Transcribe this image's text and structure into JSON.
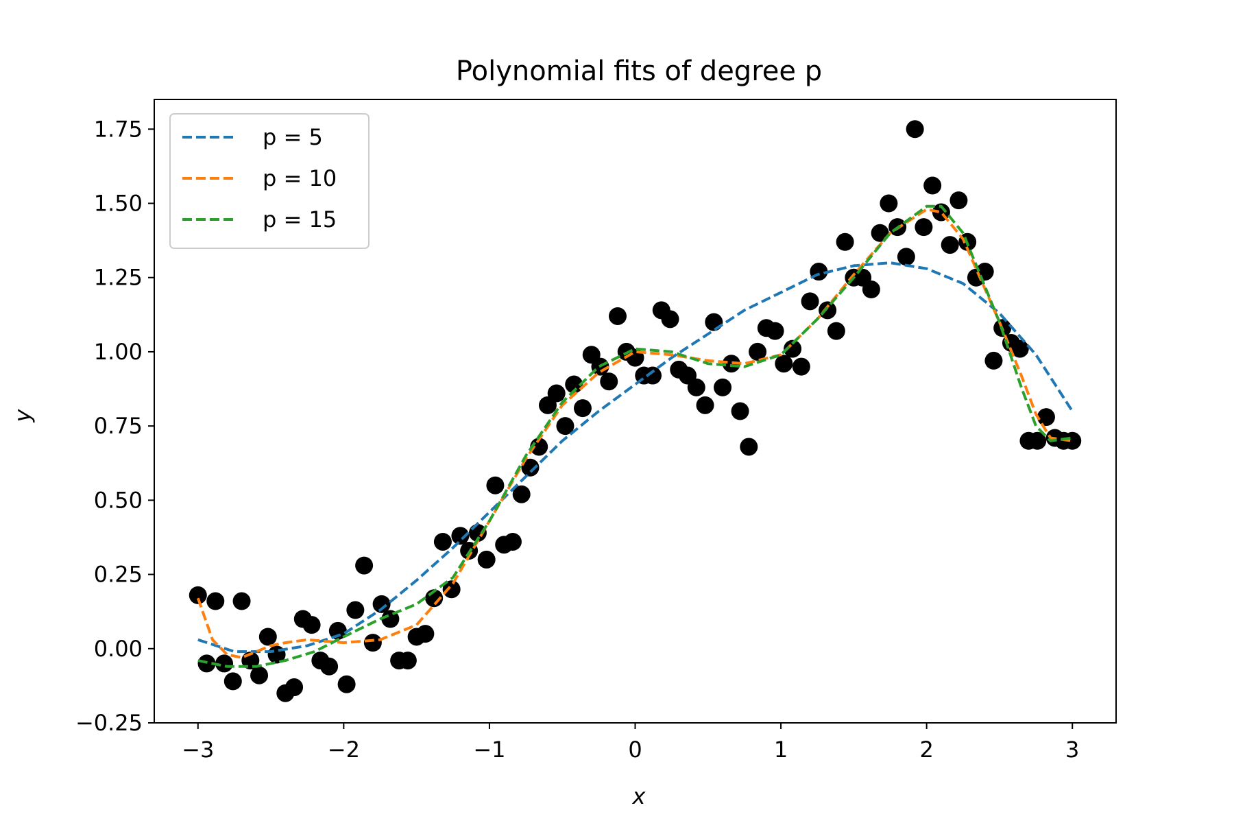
{
  "chart_data": {
    "type": "scatter",
    "title": "Polynomial fits of degree p",
    "xlabel": "x",
    "ylabel": "y",
    "xlim": [
      -3.3,
      3.3
    ],
    "ylim": [
      -0.25,
      1.85
    ],
    "xticks": [
      -3,
      -2,
      -1,
      0,
      1,
      2,
      3
    ],
    "xtick_labels": [
      "−3",
      "−2",
      "−1",
      "0",
      "1",
      "2",
      "3"
    ],
    "yticks": [
      -0.25,
      0,
      0.25,
      0.5,
      0.75,
      1.0,
      1.25,
      1.5,
      1.75
    ],
    "ytick_labels": [
      "−0.25",
      "0.00",
      "0.25",
      "0.50",
      "0.75",
      "1.00",
      "1.25",
      "1.50",
      "1.75"
    ],
    "grid": false,
    "legend_position": "top-left",
    "points": {
      "color": "#000000",
      "x": [
        -3.0,
        -2.94,
        -2.88,
        -2.82,
        -2.76,
        -2.7,
        -2.64,
        -2.58,
        -2.52,
        -2.46,
        -2.4,
        -2.34,
        -2.28,
        -2.22,
        -2.16,
        -2.1,
        -2.04,
        -1.98,
        -1.92,
        -1.86,
        -1.8,
        -1.74,
        -1.68,
        -1.62,
        -1.56,
        -1.5,
        -1.44,
        -1.38,
        -1.32,
        -1.26,
        -1.2,
        -1.14,
        -1.08,
        -1.02,
        -0.96,
        -0.9,
        -0.84,
        -0.78,
        -0.72,
        -0.66,
        -0.6,
        -0.54,
        -0.48,
        -0.42,
        -0.36,
        -0.3,
        -0.24,
        -0.18,
        -0.12,
        -0.06,
        0.0,
        0.06,
        0.12,
        0.18,
        0.24,
        0.3,
        0.36,
        0.42,
        0.48,
        0.54,
        0.6,
        0.66,
        0.72,
        0.78,
        0.84,
        0.9,
        0.96,
        1.02,
        1.08,
        1.14,
        1.2,
        1.26,
        1.32,
        1.38,
        1.44,
        1.5,
        1.56,
        1.62,
        1.68,
        1.74,
        1.8,
        1.86,
        1.92,
        1.98,
        2.04,
        2.1,
        2.16,
        2.22,
        2.28,
        2.34,
        2.4,
        2.46,
        2.52,
        2.58,
        2.64,
        2.7,
        2.76,
        2.82,
        2.88,
        2.94,
        3.0
      ],
      "y": [
        0.18,
        -0.05,
        0.16,
        -0.05,
        -0.11,
        0.16,
        -0.04,
        -0.09,
        0.04,
        -0.02,
        -0.15,
        -0.13,
        0.1,
        0.08,
        -0.04,
        -0.06,
        0.06,
        -0.12,
        0.13,
        0.28,
        0.02,
        0.15,
        0.1,
        -0.04,
        -0.04,
        0.04,
        0.05,
        0.17,
        0.36,
        0.2,
        0.38,
        0.33,
        0.39,
        0.3,
        0.55,
        0.35,
        0.36,
        0.52,
        0.61,
        0.68,
        0.82,
        0.86,
        0.75,
        0.89,
        0.81,
        0.99,
        0.95,
        0.9,
        1.12,
        1.0,
        0.98,
        0.92,
        0.92,
        1.14,
        1.11,
        0.94,
        0.92,
        0.88,
        0.82,
        1.1,
        0.88,
        0.96,
        0.8,
        0.68,
        1.0,
        1.08,
        1.07,
        0.96,
        1.01,
        0.95,
        1.17,
        1.27,
        1.14,
        1.07,
        1.37,
        1.25,
        1.25,
        1.21,
        1.4,
        1.5,
        1.42,
        1.32,
        1.75,
        1.42,
        1.56,
        1.47,
        1.36,
        1.51,
        1.37,
        1.25,
        1.27,
        0.97,
        1.08,
        1.03,
        1.01,
        0.7,
        0.7,
        0.78,
        0.71,
        0.7,
        0.7
      ]
    },
    "series": [
      {
        "name": "p = 5",
        "color": "#1f77b4",
        "x": [
          -3.0,
          -2.75,
          -2.5,
          -2.25,
          -2.0,
          -1.75,
          -1.5,
          -1.25,
          -1.0,
          -0.75,
          -0.5,
          -0.25,
          0.0,
          0.25,
          0.5,
          0.75,
          1.0,
          1.25,
          1.5,
          1.75,
          2.0,
          2.25,
          2.5,
          2.75,
          3.0
        ],
        "y": [
          0.03,
          -0.01,
          -0.01,
          0.01,
          0.05,
          0.13,
          0.23,
          0.34,
          0.46,
          0.58,
          0.7,
          0.8,
          0.89,
          0.98,
          1.06,
          1.14,
          1.2,
          1.26,
          1.29,
          1.3,
          1.28,
          1.23,
          1.13,
          0.99,
          0.8
        ]
      },
      {
        "name": "p = 10",
        "color": "#ff7f0e",
        "x": [
          -3.0,
          -2.9,
          -2.8,
          -2.7,
          -2.6,
          -2.5,
          -2.4,
          -2.25,
          -2.0,
          -1.75,
          -1.5,
          -1.25,
          -1.0,
          -0.75,
          -0.5,
          -0.25,
          0.0,
          0.25,
          0.5,
          0.75,
          1.0,
          1.25,
          1.5,
          1.75,
          2.0,
          2.1,
          2.25,
          2.5,
          2.65,
          2.75,
          2.85,
          3.0
        ],
        "y": [
          0.17,
          0.03,
          -0.02,
          -0.03,
          -0.01,
          0.01,
          0.02,
          0.03,
          0.02,
          0.03,
          0.08,
          0.22,
          0.43,
          0.64,
          0.82,
          0.93,
          1.0,
          0.99,
          0.97,
          0.96,
          0.99,
          1.11,
          1.26,
          1.4,
          1.48,
          1.47,
          1.38,
          1.1,
          0.92,
          0.79,
          0.71,
          0.7
        ]
      },
      {
        "name": "p = 15",
        "color": "#2ca02c",
        "x": [
          -3.0,
          -2.8,
          -2.6,
          -2.4,
          -2.2,
          -2.0,
          -1.75,
          -1.5,
          -1.25,
          -1.0,
          -0.75,
          -0.5,
          -0.25,
          0.0,
          0.25,
          0.5,
          0.75,
          1.0,
          1.25,
          1.5,
          1.75,
          2.0,
          2.1,
          2.25,
          2.5,
          2.65,
          2.75,
          2.85,
          3.0
        ],
        "y": [
          -0.04,
          -0.06,
          -0.06,
          -0.04,
          -0.01,
          0.04,
          0.1,
          0.15,
          0.24,
          0.43,
          0.65,
          0.83,
          0.95,
          1.01,
          1.0,
          0.96,
          0.95,
          0.99,
          1.11,
          1.25,
          1.4,
          1.49,
          1.49,
          1.4,
          1.1,
          0.88,
          0.75,
          0.7,
          0.71
        ]
      }
    ]
  }
}
